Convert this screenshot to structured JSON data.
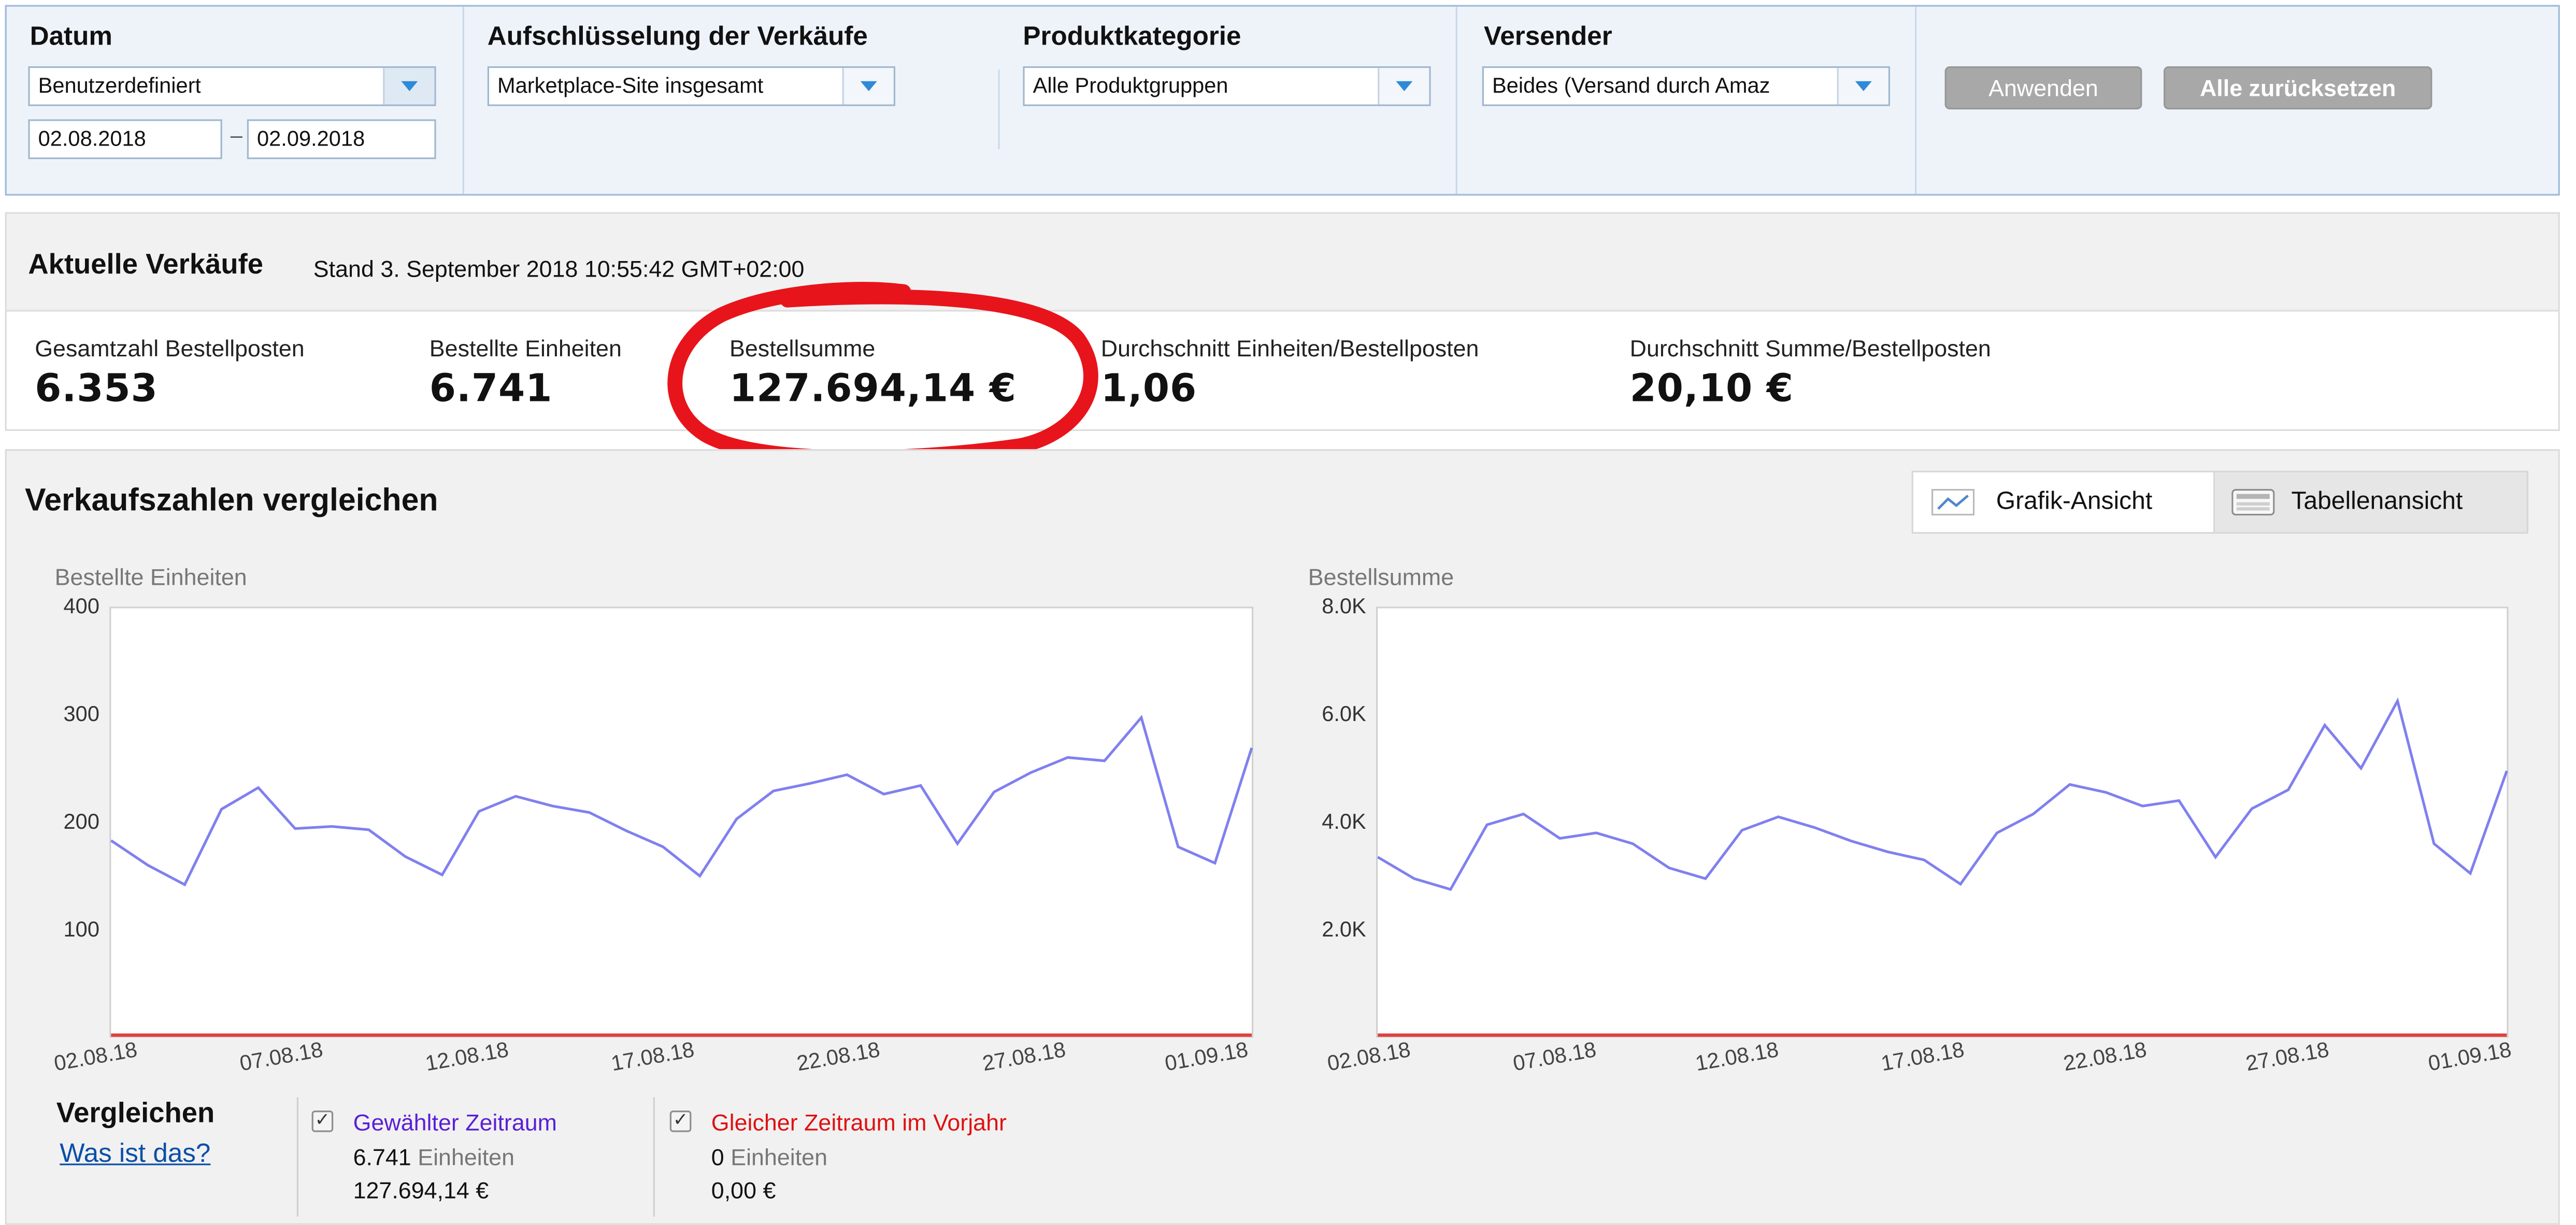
{
  "filters": {
    "datum": {
      "label": "Datum",
      "selected": "Benutzerdefiniert",
      "date_from": "02.08.2018",
      "date_separator": "–",
      "date_to": "02.09.2018"
    },
    "aufschluesselung": {
      "label": "Aufschlüsselung der Verkäufe",
      "selected": "Marketplace-Site insgesamt"
    },
    "produktkategorie": {
      "label": "Produktkategorie",
      "selected": "Alle Produktgruppen"
    },
    "versender": {
      "label": "Versender",
      "selected": "Beides (Versand durch Amaz"
    },
    "apply_label": "Anwenden",
    "reset_label": "Alle zurücksetzen"
  },
  "current_sales": {
    "title": "Aktuelle Verkäufe",
    "stand": "Stand 3. September 2018 10:55:42 GMT+02:00",
    "metrics": [
      {
        "label": "Gesamtzahl Bestellposten",
        "value": "6.353"
      },
      {
        "label": "Bestellte Einheiten",
        "value": "6.741"
      },
      {
        "label": "Bestellsumme",
        "value": "127.694,14 €"
      },
      {
        "label": "Durchschnitt Einheiten/Bestellposten",
        "value": "1,06"
      },
      {
        "label": "Durchschnitt Summe/Bestellposten",
        "value": "20,10 €"
      }
    ],
    "highlight_color": "#e8141b"
  },
  "compare": {
    "title": "Verkaufszahlen vergleichen",
    "graph_view_label": "Grafik-Ansicht",
    "table_view_label": "Tabellenansicht",
    "graph_icon": "line-chart-icon",
    "table_icon": "keyboard-table-icon"
  },
  "chart_data": [
    {
      "type": "line",
      "title": "Bestellte Einheiten",
      "y_ticks": [
        "400",
        "300",
        "200",
        "100"
      ],
      "x_ticks": [
        "02.08.18",
        "07.08.18",
        "12.08.18",
        "17.08.18",
        "22.08.18",
        "27.08.18",
        "01.09.18"
      ],
      "ylim": [
        0,
        400
      ],
      "series": [
        {
          "color": "#8080f0",
          "values": [
            183,
            160,
            142,
            212,
            232,
            194,
            196,
            193,
            168,
            151,
            210,
            224,
            215,
            209,
            192,
            177,
            150,
            203,
            229,
            236,
            244,
            226,
            234,
            180,
            228,
            246,
            260,
            257,
            297,
            177,
            162,
            269
          ]
        },
        {
          "color": "#e04040",
          "values": [
            0,
            0,
            0,
            0,
            0,
            0,
            0,
            0,
            0,
            0,
            0,
            0,
            0,
            0,
            0,
            0,
            0,
            0,
            0,
            0,
            0,
            0,
            0,
            0,
            0,
            0,
            0,
            0,
            0,
            0,
            0,
            0
          ]
        }
      ]
    },
    {
      "type": "line",
      "title": "Bestellsumme",
      "y_ticks": [
        "8.0K",
        "6.0K",
        "4.0K",
        "2.0K"
      ],
      "x_ticks": [
        "02.08.18",
        "07.08.18",
        "12.08.18",
        "17.08.18",
        "22.08.18",
        "27.08.18",
        "01.09.18"
      ],
      "ylim": [
        0,
        8000
      ],
      "series": [
        {
          "color": "#8080f0",
          "values": [
            3350,
            2950,
            2750,
            3950,
            4150,
            3700,
            3800,
            3600,
            3150,
            2950,
            3850,
            4100,
            3900,
            3650,
            3450,
            3300,
            2850,
            3800,
            4150,
            4700,
            4550,
            4300,
            4400,
            3350,
            4250,
            4600,
            5800,
            5000,
            6250,
            3600,
            3050,
            4950
          ]
        },
        {
          "color": "#e04040",
          "values": [
            0,
            0,
            0,
            0,
            0,
            0,
            0,
            0,
            0,
            0,
            0,
            0,
            0,
            0,
            0,
            0,
            0,
            0,
            0,
            0,
            0,
            0,
            0,
            0,
            0,
            0,
            0,
            0,
            0,
            0,
            0,
            0
          ]
        }
      ]
    }
  ],
  "legend": {
    "compare_label": "Vergleichen",
    "what_is_this": "Was ist das?",
    "selected_period": {
      "label": "Gewählter Zeitraum",
      "color": "#5a1fd6",
      "units": "6.741",
      "units_label": "Einheiten",
      "sum": "127.694,14 €"
    },
    "previous_year": {
      "label": "Gleicher Zeitraum im Vorjahr",
      "color": "#e01010",
      "units": "0",
      "units_label": "Einheiten",
      "sum": "0,00 €"
    }
  }
}
